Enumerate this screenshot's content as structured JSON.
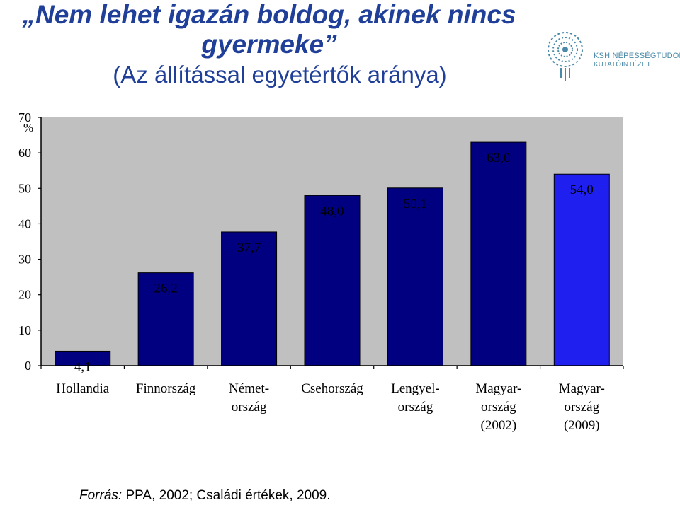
{
  "title": {
    "line1": "Nem lehet igazán boldog, akinek nincs",
    "line2": "gyermeke",
    "open_quote": "„",
    "close_quote": "”",
    "subtitle": "(Az állítással egyetértők aránya)"
  },
  "logo": {
    "line1": "KSH NÉPESSÉGTUDOMÁNYI",
    "line2": "KUTATÓINTÉZET",
    "icon": "ksh-circular-logo",
    "color": "#4a8aa8"
  },
  "chart_data": {
    "type": "bar",
    "y_unit_label": "%",
    "ylim": [
      0,
      70
    ],
    "yticks": [
      0,
      10,
      20,
      30,
      40,
      50,
      60,
      70
    ],
    "grid": false,
    "categories": [
      [
        "Hollandia"
      ],
      [
        "Finnország"
      ],
      [
        "Német-",
        "ország"
      ],
      [
        "Csehország"
      ],
      [
        "Lengyel-",
        "ország"
      ],
      [
        "Magyar-",
        "ország",
        "(2002)"
      ],
      [
        "Magyar-",
        "ország",
        "(2009)"
      ]
    ],
    "values": [
      4.1,
      26.2,
      37.7,
      48.0,
      50.1,
      63.0,
      54.0
    ],
    "value_labels": [
      "4,1",
      "26,2",
      "37,7",
      "48,0",
      "50,1",
      "63,0",
      "54,0"
    ],
    "colors": [
      "#000080",
      "#000080",
      "#000080",
      "#000080",
      "#000080",
      "#000080",
      "#1f1ff0"
    ],
    "plot_background": "#c0c0c0"
  },
  "source": {
    "label": "Forrás:",
    "text": " PPA, 2002; Családi értékek, 2009."
  }
}
